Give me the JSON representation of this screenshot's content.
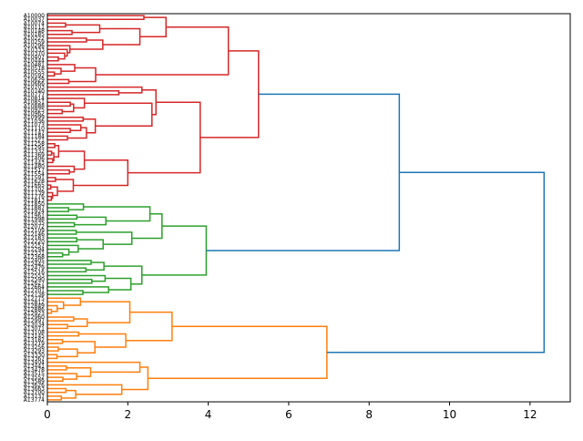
{
  "chart_data": {
    "type": "dendrogram",
    "orientation": "right",
    "title": "",
    "xlabel": "",
    "ylabel": "",
    "xlim": [
      0,
      13
    ],
    "xticks": [
      "0",
      "2",
      "4",
      "6",
      "8",
      "10",
      "12"
    ],
    "colors": {
      "cluster_red": "#d62728",
      "cluster_green": "#2ca02c",
      "cluster_orange": "#ff7f0e",
      "above_threshold": "#1f77b4"
    },
    "tree": {
      "h": 12.35,
      "c": "above_threshold",
      "ch": [
        {
          "h": 8.75,
          "c": "above_threshold",
          "ch": [
            {
              "h": 5.25,
              "c": "cluster_red",
              "ch": [
                {
                  "h": 4.5,
                  "c": "cluster_red",
                  "ch": [
                    {
                      "h": 2.95,
                      "c": "cluster_red",
                      "ch": [
                        {
                          "n": 2,
                          "h": 2.4
                        },
                        {
                          "n": 11,
                          "h": 2.3
                        }
                      ]
                    },
                    {
                      "n": 6,
                      "h": 1.2
                    }
                  ]
                },
                {
                  "h": 3.8,
                  "c": "cluster_red",
                  "ch": [
                    {
                      "h": 2.7,
                      "c": "cluster_red",
                      "ch": [
                        {
                          "n": 3,
                          "h": 2.35
                        },
                        {
                          "n": 12,
                          "h": 2.6
                        }
                      ]
                    },
                    {
                      "n": 16,
                      "h": 2.0
                    }
                  ]
                }
              ]
            },
            {
              "h": 3.95,
              "c": "cluster_green",
              "ch": [
                {
                  "h": 2.85,
                  "c": "cluster_green",
                  "ch": [
                    {
                      "n": 7,
                      "h": 2.55
                    },
                    {
                      "n": 8,
                      "h": 2.1
                    }
                  ]
                },
                {
                  "n": 10,
                  "h": 2.35
                }
              ]
            }
          ]
        },
        {
          "h": 6.95,
          "c": "cluster_orange",
          "ch": [
            {
              "h": 3.1,
              "c": "cluster_orange",
              "ch": [
                {
                  "n": 9,
                  "h": 2.05
                },
                {
                  "n": 8,
                  "h": 1.95
                }
              ]
            },
            {
              "h": 2.5,
              "c": "cluster_orange",
              "ch": [
                {
                  "n": 6,
                  "h": 2.3
                },
                {
                  "n": 5,
                  "h": 1.85
                }
              ]
            }
          ]
        }
      ]
    },
    "leaf_label_prefix": "A"
  }
}
